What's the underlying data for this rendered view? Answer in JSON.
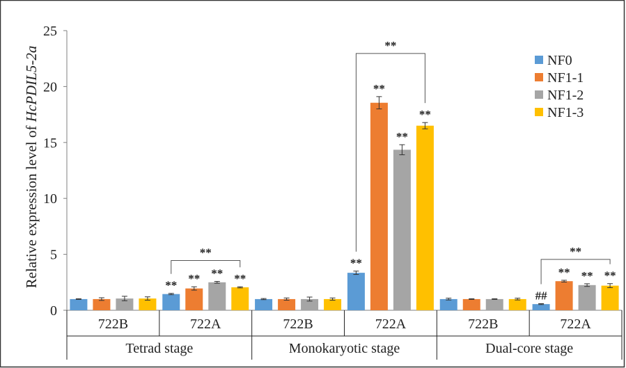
{
  "chart_data": {
    "type": "bar",
    "ylabel_prefix": "Relative expression level of ",
    "ylabel_gene": "HcPDIL5-2a",
    "ylim": [
      0,
      25
    ],
    "yticks": [
      "0",
      "5",
      "10",
      "15",
      "20",
      "25"
    ],
    "groups": [
      {
        "label": "Tetrad stage",
        "categories": [
          "722B",
          "722A"
        ]
      },
      {
        "label": "Monokaryotic stage",
        "categories": [
          "722B",
          "722A"
        ]
      },
      {
        "label": "Dual-core stage",
        "categories": [
          "722B",
          "722A"
        ]
      }
    ],
    "series": [
      {
        "name": "NF0",
        "color": "#5B9BD5",
        "values": [
          1.0,
          1.45,
          1.0,
          3.35,
          1.0,
          0.55
        ],
        "errors": [
          0.03,
          0.06,
          0.05,
          0.15,
          0.08,
          0.04
        ],
        "marks": [
          "",
          "**",
          "",
          "**",
          "",
          "##"
        ]
      },
      {
        "name": "NF1-1",
        "color": "#ED7D31",
        "values": [
          1.0,
          1.95,
          1.0,
          18.55,
          1.0,
          2.6
        ],
        "errors": [
          0.12,
          0.15,
          0.1,
          0.55,
          0.03,
          0.08
        ],
        "marks": [
          "",
          "**",
          "",
          "**",
          "",
          "**"
        ]
      },
      {
        "name": "NF1-2",
        "color": "#A5A5A5",
        "values": [
          1.05,
          2.5,
          1.0,
          14.35,
          1.0,
          2.25
        ],
        "errors": [
          0.2,
          0.08,
          0.18,
          0.45,
          0.03,
          0.12
        ],
        "marks": [
          "",
          "**",
          "",
          "**",
          "",
          "**"
        ]
      },
      {
        "name": "NF1-3",
        "color": "#FFC000",
        "values": [
          1.05,
          2.05,
          1.0,
          16.5,
          1.0,
          2.2
        ],
        "errors": [
          0.15,
          0.05,
          0.1,
          0.28,
          0.08,
          0.18
        ],
        "marks": [
          "",
          "**",
          "",
          "**",
          "",
          "**"
        ]
      }
    ],
    "brackets": [
      {
        "category_index": 1,
        "label": "**"
      },
      {
        "category_index": 3,
        "label": "**"
      },
      {
        "category_index": 5,
        "label": "**"
      }
    ],
    "legend_position": "top-right",
    "grid": false
  }
}
